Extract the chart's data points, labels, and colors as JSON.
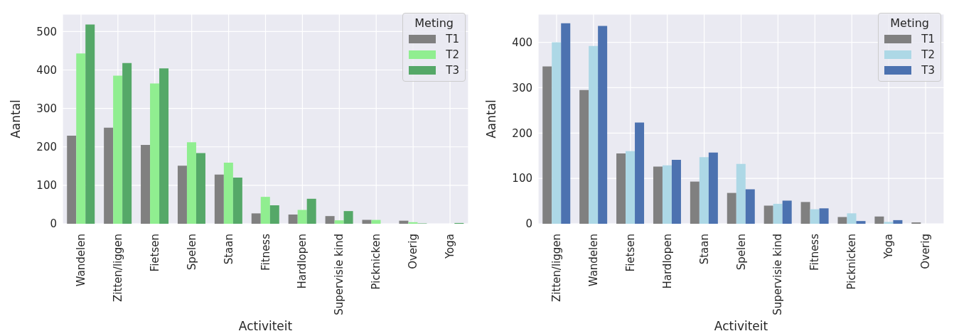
{
  "chart_data": [
    {
      "type": "bar",
      "xlabel": "Activiteit",
      "ylabel": "Aantal",
      "legend_title": "Meting",
      "legend": "top right",
      "grid": true,
      "categories": [
        "Wandelen",
        "Zitten/liggen",
        "Fietsen",
        "Spelen",
        "Staan",
        "Fitness",
        "Hardlopen",
        "Supervisie kind",
        "Picknicken",
        "Overig",
        "Yoga"
      ],
      "ylim": [
        0,
        545
      ],
      "yticks": [
        0,
        100,
        200,
        300,
        400,
        500
      ],
      "series": [
        {
          "name": "T1",
          "color": "#808080",
          "values": [
            229,
            250,
            205,
            151,
            128,
            27,
            24,
            20,
            10,
            8,
            0
          ]
        },
        {
          "name": "T2",
          "color": "#90ee90",
          "values": [
            443,
            385,
            365,
            212,
            159,
            70,
            36,
            9,
            10,
            4,
            0
          ]
        },
        {
          "name": "T3",
          "color": "#55a868",
          "values": [
            518,
            418,
            404,
            184,
            120,
            48,
            65,
            33,
            0,
            1,
            2
          ]
        }
      ]
    },
    {
      "type": "bar",
      "xlabel": "Activiteit",
      "ylabel": "Aantal",
      "legend_title": "Meting",
      "legend": "top right",
      "grid": true,
      "categories": [
        "Zitten/liggen",
        "Wandelen",
        "Fietsen",
        "Hardlopen",
        "Staan",
        "Spelen",
        "Supervisie kind",
        "Fitness",
        "Picknicken",
        "Yoga",
        "Overig"
      ],
      "ylim": [
        0,
        462
      ],
      "yticks": [
        0,
        100,
        200,
        300,
        400
      ],
      "series": [
        {
          "name": "T1",
          "color": "#808080",
          "values": [
            347,
            295,
            155,
            126,
            93,
            68,
            40,
            48,
            15,
            16,
            3
          ]
        },
        {
          "name": "T2",
          "color": "#add8e6",
          "values": [
            400,
            392,
            160,
            129,
            147,
            132,
            44,
            32,
            23,
            4,
            0
          ]
        },
        {
          "name": "T3",
          "color": "#4c72b0",
          "values": [
            442,
            436,
            223,
            141,
            157,
            76,
            51,
            34,
            6,
            8,
            0
          ]
        }
      ]
    }
  ]
}
